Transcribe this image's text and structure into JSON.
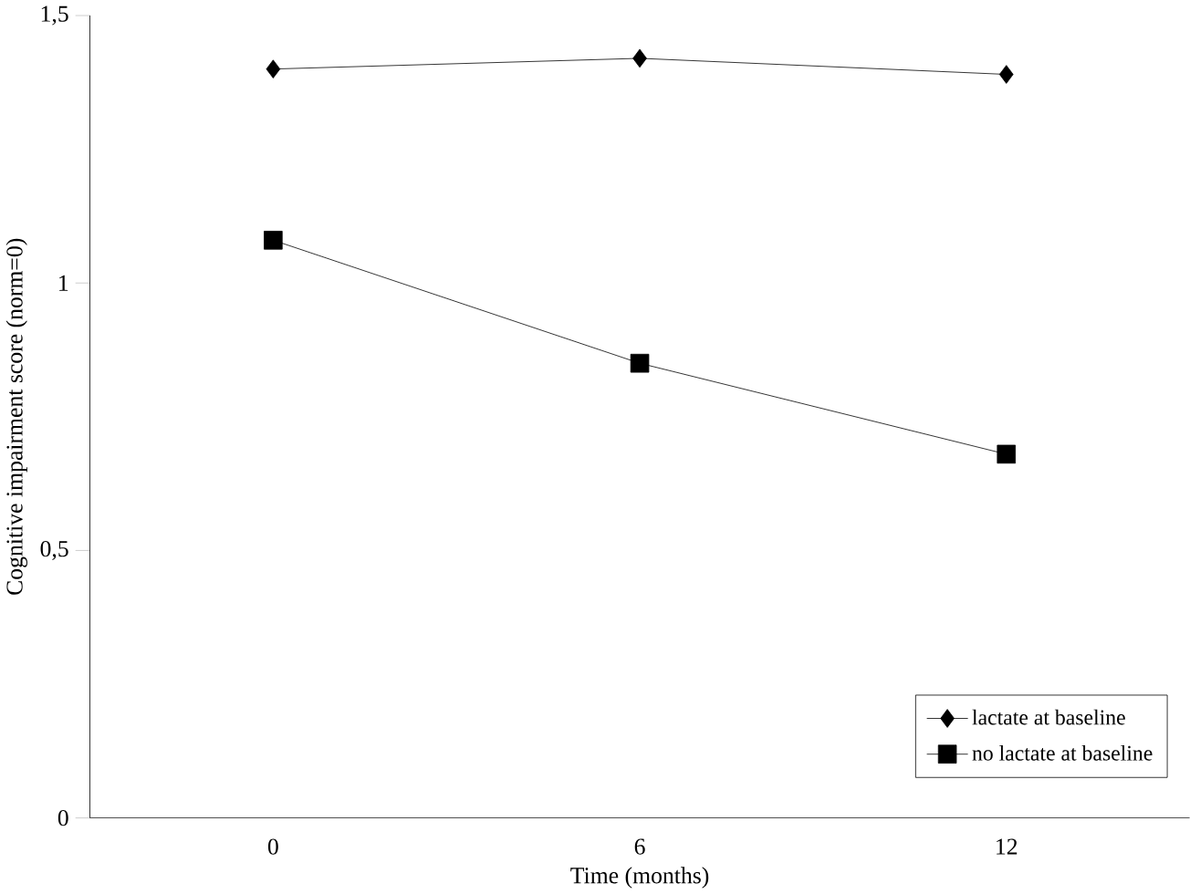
{
  "chart_data": {
    "type": "line",
    "xlabel": "Time (months)",
    "ylabel": "Cognitive impairment score (norm=0)",
    "categories": [
      "0",
      "6",
      "12"
    ],
    "series": [
      {
        "name": "lactate at baseline",
        "color": "#000000",
        "marker": "diamond",
        "values": [
          1.4,
          1.42,
          1.39
        ]
      },
      {
        "name": "no lactate at baseline",
        "color": "#000000",
        "marker": "square",
        "values": [
          1.08,
          0.85,
          0.68
        ]
      }
    ],
    "ylim": [
      0,
      1.5
    ],
    "yticks": [
      {
        "value": 0,
        "label": "0"
      },
      {
        "value": 0.5,
        "label": "0,5"
      },
      {
        "value": 1,
        "label": "1"
      },
      {
        "value": 1.5,
        "label": "1,5"
      }
    ],
    "legend": "bottom right",
    "grid": false,
    "line_style": "solid"
  }
}
